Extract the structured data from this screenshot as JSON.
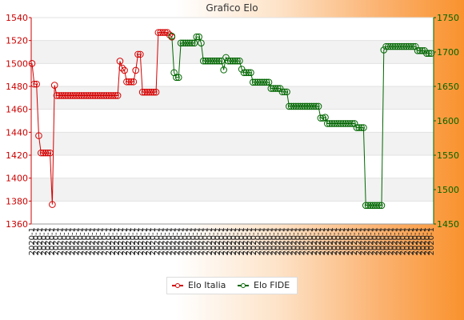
{
  "chart_data": {
    "type": "line",
    "title": "Grafico Elo",
    "left_axis": {
      "ylim": [
        1360,
        1540
      ],
      "ticks": [
        1360,
        1380,
        1400,
        1420,
        1440,
        1460,
        1480,
        1500,
        1520,
        1540
      ],
      "color": "#cc0000"
    },
    "right_axis": {
      "ylim": [
        1450,
        1750
      ],
      "ticks": [
        1450,
        1500,
        1550,
        1600,
        1650,
        1700,
        1750
      ],
      "color": "#006600"
    },
    "grid": true,
    "legend_position": "bottom-center",
    "x_tick_label": "2020-1",
    "x_tick_count": 100,
    "series": [
      {
        "name": "Elo Italia",
        "color": "#d40000",
        "axis": "left",
        "values": [
          1500,
          1482,
          1482,
          1437,
          1422,
          1422,
          1422,
          1422,
          1422,
          1377,
          1481,
          1472,
          1472,
          1472,
          1472,
          1472,
          1472,
          1472,
          1472,
          1472,
          1472,
          1472,
          1472,
          1472,
          1472,
          1472,
          1472,
          1472,
          1472,
          1472,
          1472,
          1472,
          1472,
          1472,
          1472,
          1472,
          1472,
          1472,
          1472,
          1502,
          1496,
          1494,
          1484,
          1484,
          1484,
          1484,
          1494,
          1508,
          1508,
          1475,
          1475,
          1475,
          1475,
          1475,
          1475,
          1475,
          1527,
          1527,
          1527,
          1527,
          1527,
          1525,
          1523
        ]
      },
      {
        "name": "Elo FIDE",
        "color": "#006600",
        "axis": "right",
        "start_index": 62,
        "values": [
          1723,
          1670,
          1663,
          1663,
          1713,
          1713,
          1713,
          1713,
          1713,
          1713,
          1713,
          1722,
          1722,
          1713,
          1687,
          1687,
          1687,
          1687,
          1687,
          1687,
          1687,
          1687,
          1687,
          1674,
          1692,
          1687,
          1687,
          1687,
          1687,
          1687,
          1687,
          1675,
          1670,
          1670,
          1670,
          1670,
          1656,
          1656,
          1656,
          1656,
          1656,
          1656,
          1656,
          1656,
          1647,
          1647,
          1647,
          1647,
          1647,
          1642,
          1642,
          1642,
          1621,
          1621,
          1621,
          1621,
          1621,
          1621,
          1621,
          1621,
          1621,
          1621,
          1621,
          1621,
          1621,
          1621,
          1604,
          1604,
          1605,
          1596,
          1596,
          1596,
          1596,
          1596,
          1596,
          1596,
          1596,
          1596,
          1596,
          1596,
          1596,
          1596,
          1590,
          1590,
          1590,
          1590,
          1477,
          1477,
          1477,
          1477,
          1477,
          1477,
          1477,
          1477,
          1703,
          1708,
          1708,
          1708,
          1708,
          1708,
          1708,
          1708,
          1708,
          1708,
          1708,
          1708,
          1708,
          1708,
          1708,
          1702,
          1702,
          1702,
          1702,
          1698,
          1698,
          1698
        ]
      }
    ]
  }
}
